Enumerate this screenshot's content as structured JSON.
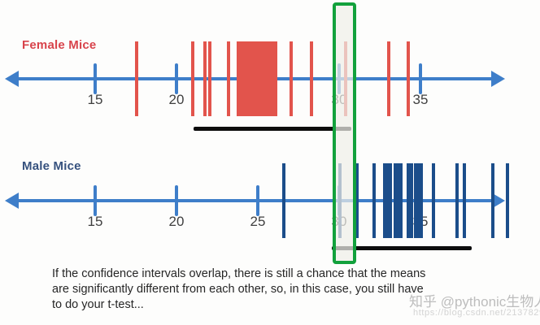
{
  "caption": {
    "lines": [
      "If the confidence intervals overlap, there is still a chance that the means",
      "are significantly different from each other, so, in this case, you still have",
      "to do your t-test..."
    ]
  },
  "watermark": {
    "brand": "知乎 @pythonic生物人",
    "url": "https://blog.csdn.net/21378291"
  },
  "colors": {
    "axis_blue": "#3e7ec9",
    "female_red": "#e2544c",
    "female_label_red": "#d8434b",
    "male_navy": "#1b4d8a",
    "male_label_navy": "#36517e",
    "ci_black": "#0d0d0d",
    "highlight_green": "#12a13c"
  },
  "chart_data": {
    "type": "scatter",
    "subtype": "one-dimensional strip plots on number lines",
    "title": "",
    "xlabel": "",
    "ylabel": "",
    "axis_ticks": [
      15,
      20,
      25,
      30,
      35
    ],
    "xlim": [
      12,
      40.5
    ],
    "grid": false,
    "groups": [
      {
        "name": "Female Mice",
        "values": [
          17.55,
          21.0,
          21.75,
          22.05,
          23.2,
          23.8,
          23.98,
          24.15,
          24.33,
          24.5,
          24.68,
          24.85,
          25.03,
          25.2,
          25.38,
          25.55,
          25.73,
          25.9,
          26.08,
          27.05,
          28.3,
          30.4,
          33.05,
          34.25
        ],
        "confidence_interval": [
          21.05,
          30.75
        ]
      },
      {
        "name": "Male Mice",
        "values": [
          26.6,
          30.05,
          31.1,
          32.15,
          32.8,
          32.98,
          33.15,
          33.45,
          33.63,
          33.8,
          34.25,
          34.43,
          34.7,
          34.88,
          35.05,
          35.8,
          37.25,
          37.7,
          39.45,
          40.35
        ],
        "confidence_interval": [
          29.55,
          38.15
        ]
      }
    ],
    "highlight_box": {
      "value_range": [
        29.75,
        30.9
      ],
      "meaning": "vertical green box marking overlap of the two confidence intervals around value 30"
    }
  }
}
